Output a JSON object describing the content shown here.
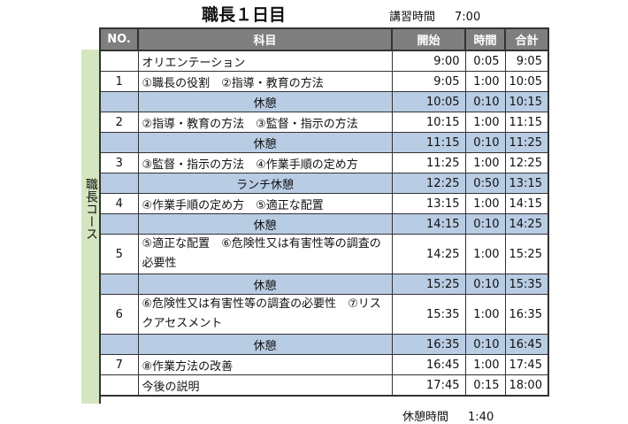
{
  "title": "職長１日目",
  "lecture_hours": {
    "label": "講習時間",
    "value": "7:00"
  },
  "side_label": "職長コース",
  "headers": {
    "no": "NO.",
    "subject": "科目",
    "start": "開始",
    "duration": "時間",
    "end": "合計"
  },
  "rows": [
    {
      "no": "",
      "subject": "オリエンテーション",
      "start": "9:00",
      "duration": "0:05",
      "end": "9:05",
      "break": false
    },
    {
      "no": "1",
      "subject": "①職長の役割　②指導・教育の方法",
      "start": "9:05",
      "duration": "1:00",
      "end": "10:05",
      "break": false
    },
    {
      "no": "",
      "subject": "休憩",
      "start": "10:05",
      "duration": "0:10",
      "end": "10:15",
      "break": true
    },
    {
      "no": "2",
      "subject": "②指導・教育の方法　③監督・指示の方法",
      "start": "10:15",
      "duration": "1:00",
      "end": "11:15",
      "break": false
    },
    {
      "no": "",
      "subject": "休憩",
      "start": "11:15",
      "duration": "0:10",
      "end": "11:25",
      "break": true
    },
    {
      "no": "3",
      "subject": "③監督・指示の方法　④作業手順の定め方",
      "start": "11:25",
      "duration": "1:00",
      "end": "12:25",
      "break": false
    },
    {
      "no": "",
      "subject": "ランチ休憩",
      "start": "12:25",
      "duration": "0:50",
      "end": "13:15",
      "break": true
    },
    {
      "no": "4",
      "subject": "④作業手順の定め方　⑤適正な配置",
      "start": "13:15",
      "duration": "1:00",
      "end": "14:15",
      "break": false
    },
    {
      "no": "",
      "subject": "休憩",
      "start": "14:15",
      "duration": "0:10",
      "end": "14:25",
      "break": true
    },
    {
      "no": "5",
      "subject": "⑤適正な配置　⑥危険性又は有害性等の調査の必要性",
      "start": "14:25",
      "duration": "1:00",
      "end": "15:25",
      "break": false,
      "tall": true
    },
    {
      "no": "",
      "subject": "休憩",
      "start": "15:25",
      "duration": "0:10",
      "end": "15:35",
      "break": true
    },
    {
      "no": "6",
      "subject": "⑥危険性又は有害性等の調査の必要性　⑦リスクアセスメント",
      "start": "15:35",
      "duration": "1:00",
      "end": "16:35",
      "break": false,
      "tall": true
    },
    {
      "no": "",
      "subject": "休憩",
      "start": "16:35",
      "duration": "0:10",
      "end": "16:45",
      "break": true
    },
    {
      "no": "7",
      "subject": "⑧作業方法の改善",
      "start": "16:45",
      "duration": "1:00",
      "end": "17:45",
      "break": false
    },
    {
      "no": "",
      "subject": "今後の説明",
      "start": "17:45",
      "duration": "0:15",
      "end": "18:00",
      "break": false
    }
  ],
  "break_total": {
    "label": "休憩時間",
    "value": "1:40"
  },
  "colors": {
    "header": "#7f7f7f",
    "break_row": "#b8cce4",
    "side": "#d4e6c0"
  }
}
